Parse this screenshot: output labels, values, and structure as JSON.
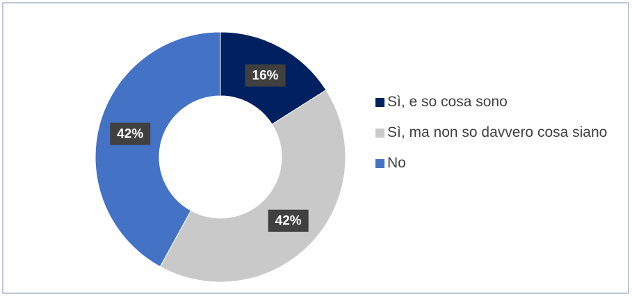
{
  "chart_data": {
    "type": "donut",
    "categories": [
      "Sì, e so cosa sono",
      "Sì, ma non so davvero cosa siano",
      "No"
    ],
    "values": [
      16,
      42,
      42
    ],
    "value_labels": [
      "16%",
      "42%",
      "42%"
    ],
    "colors": [
      "#002060",
      "#c9c9c9",
      "#4472c4"
    ],
    "legend": "right"
  }
}
